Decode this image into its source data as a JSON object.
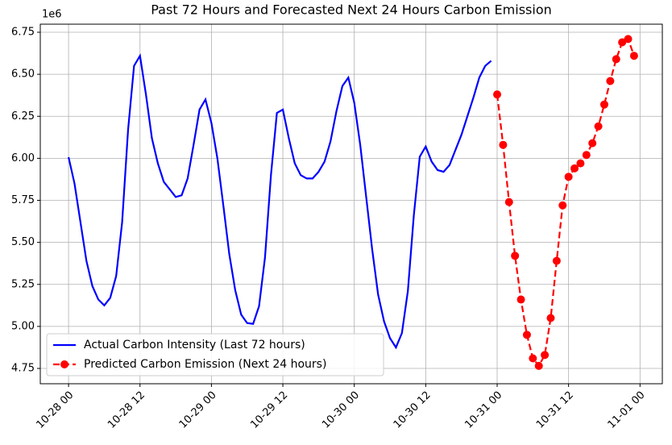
{
  "chart_data": {
    "type": "line",
    "title": "Past 72 Hours and Forecasted Next 24 Hours Carbon Emission",
    "y_offset_label": "1e6",
    "ylim": [
      4.659,
      6.798
    ],
    "yticks": [
      {
        "value": 4.75,
        "label": "4.75"
      },
      {
        "value": 5.0,
        "label": "5.00"
      },
      {
        "value": 5.25,
        "label": "5.25"
      },
      {
        "value": 5.5,
        "label": "5.50"
      },
      {
        "value": 5.75,
        "label": "5.75"
      },
      {
        "value": 6.0,
        "label": "6.00"
      },
      {
        "value": 6.25,
        "label": "6.25"
      },
      {
        "value": 6.5,
        "label": "6.50"
      },
      {
        "value": 6.75,
        "label": "6.75"
      }
    ],
    "xticks": [
      "10-28 00",
      "10-28 12",
      "10-29 00",
      "10-29 12",
      "10-30 00",
      "10-30 12",
      "10-31 00",
      "10-31 12",
      "11-01 00"
    ],
    "grid": true,
    "legend": "lower left",
    "series": [
      {
        "name": "Actual Carbon Intensity (Last 72 hours)",
        "color": "#0000ff",
        "style": "solid",
        "marker": false,
        "x": [
          "10-28 00",
          "10-28 01",
          "10-28 02",
          "10-28 03",
          "10-28 04",
          "10-28 05",
          "10-28 06",
          "10-28 07",
          "10-28 08",
          "10-28 09",
          "10-28 10",
          "10-28 11",
          "10-28 12",
          "10-28 13",
          "10-28 14",
          "10-28 15",
          "10-28 16",
          "10-28 17",
          "10-28 18",
          "10-28 19",
          "10-28 20",
          "10-28 21",
          "10-28 22",
          "10-28 23",
          "10-29 00",
          "10-29 01",
          "10-29 02",
          "10-29 03",
          "10-29 04",
          "10-29 05",
          "10-29 06",
          "10-29 07",
          "10-29 08",
          "10-29 09",
          "10-29 10",
          "10-29 11",
          "10-29 12",
          "10-29 13",
          "10-29 14",
          "10-29 15",
          "10-29 16",
          "10-29 17",
          "10-29 18",
          "10-29 19",
          "10-29 20",
          "10-29 21",
          "10-29 22",
          "10-29 23",
          "10-30 00",
          "10-30 01",
          "10-30 02",
          "10-30 03",
          "10-30 04",
          "10-30 05",
          "10-30 06",
          "10-30 07",
          "10-30 08",
          "10-30 09",
          "10-30 10",
          "10-30 11",
          "10-30 12",
          "10-30 13",
          "10-30 14",
          "10-30 15",
          "10-30 16",
          "10-30 17",
          "10-30 18",
          "10-30 19",
          "10-30 20",
          "10-30 21",
          "10-30 22",
          "10-30 23"
        ],
        "values": [
          6.007,
          5.85,
          5.62,
          5.39,
          5.24,
          5.16,
          5.125,
          5.17,
          5.3,
          5.62,
          6.17,
          6.55,
          6.61,
          6.38,
          6.12,
          5.97,
          5.86,
          5.815,
          5.77,
          5.78,
          5.88,
          6.08,
          6.29,
          6.35,
          6.21,
          6.0,
          5.72,
          5.43,
          5.215,
          5.07,
          5.02,
          5.015,
          5.12,
          5.41,
          5.9,
          6.27,
          6.29,
          6.12,
          5.97,
          5.9,
          5.88,
          5.88,
          5.92,
          5.98,
          6.1,
          6.28,
          6.43,
          6.48,
          6.33,
          6.08,
          5.77,
          5.46,
          5.19,
          5.03,
          4.93,
          4.875,
          4.96,
          5.21,
          5.66,
          6.01,
          6.07,
          5.98,
          5.93,
          5.92,
          5.96,
          6.05,
          6.14,
          6.25,
          6.36,
          6.48,
          6.55,
          6.58
        ]
      },
      {
        "name": "Predicted Carbon Emission (Next 24 hours)",
        "color": "#ff0000",
        "style": "dashed",
        "marker": true,
        "x": [
          "10-31 00",
          "10-31 01",
          "10-31 02",
          "10-31 03",
          "10-31 04",
          "10-31 05",
          "10-31 06",
          "10-31 07",
          "10-31 08",
          "10-31 09",
          "10-31 10",
          "10-31 11",
          "10-31 12",
          "10-31 13",
          "10-31 14",
          "10-31 15",
          "10-31 16",
          "10-31 17",
          "10-31 18",
          "10-31 19",
          "10-31 20",
          "10-31 21",
          "10-31 22",
          "10-31 23"
        ],
        "values": [
          6.38,
          6.08,
          5.74,
          5.42,
          5.16,
          4.95,
          4.81,
          4.765,
          4.83,
          5.05,
          5.39,
          5.72,
          5.89,
          5.94,
          5.97,
          6.02,
          6.09,
          6.19,
          6.32,
          6.46,
          6.59,
          6.69,
          6.71,
          6.61
        ]
      }
    ]
  }
}
